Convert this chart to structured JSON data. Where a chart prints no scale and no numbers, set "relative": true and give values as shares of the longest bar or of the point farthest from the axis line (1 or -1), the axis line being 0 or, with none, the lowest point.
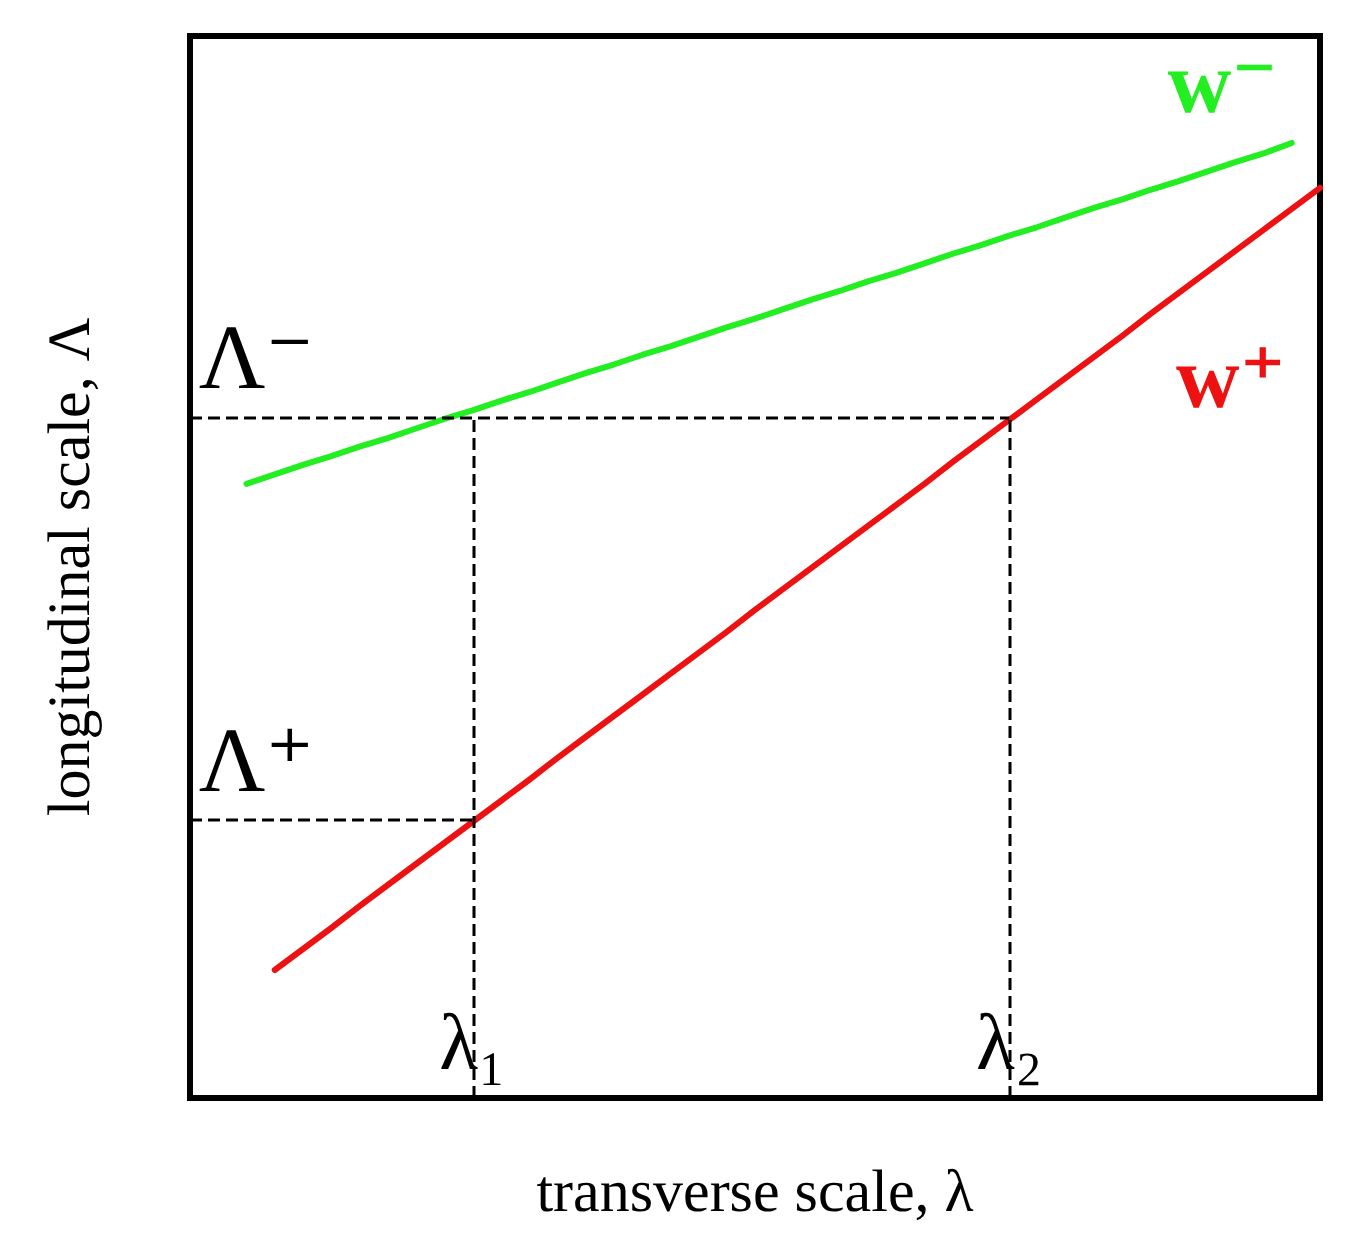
{
  "chart_data": {
    "type": "line",
    "relative": true,
    "xlabel": "transverse scale, λ",
    "ylabel": "longitudinal scale, Λ",
    "categories": [
      null,
      null,
      null,
      null,
      null,
      null,
      null,
      null,
      null,
      null,
      "λ₁",
      null,
      null,
      null,
      null,
      null,
      null,
      null,
      null,
      null,
      null,
      null,
      null,
      null,
      null,
      null,
      null,
      null,
      null,
      "λ₂",
      null,
      null,
      null,
      null,
      null,
      null,
      null,
      null,
      null,
      null,
      null
    ],
    "legend": false,
    "grid": false,
    "marker": "none",
    "line_style": "solid",
    "tick_labels": "x",
    "series": [
      {
        "name": "w⁻",
        "color": "#22ee22",
        "values": [
          null,
          null,
          0.643,
          0.653,
          0.663,
          0.672,
          0.682,
          0.691,
          0.701,
          0.711,
          0.72,
          0.73,
          0.739,
          0.749,
          0.759,
          0.768,
          0.778,
          0.787,
          0.797,
          0.807,
          0.816,
          0.826,
          0.836,
          0.845,
          0.855,
          0.864,
          0.874,
          0.884,
          0.893,
          0.903,
          0.912,
          0.922,
          0.932,
          0.941,
          0.951,
          0.96,
          0.97,
          0.98,
          0.989,
          1.0,
          null
        ]
      },
      {
        "name": "w⁺",
        "color": "#ee1111",
        "values": [
          null,
          null,
          null,
          0.134,
          0.156,
          0.178,
          0.201,
          0.223,
          0.245,
          0.267,
          0.289,
          0.311,
          0.333,
          0.356,
          0.378,
          0.4,
          0.422,
          0.444,
          0.466,
          0.488,
          0.511,
          0.533,
          0.555,
          0.577,
          0.599,
          0.621,
          0.643,
          0.666,
          0.688,
          0.71,
          0.732,
          0.754,
          0.776,
          0.798,
          0.821,
          0.843,
          0.865,
          0.887,
          0.909,
          0.931,
          0.953
        ]
      }
    ],
    "ref_lines": [
      {
        "axis": "y",
        "value": 0.713,
        "label": "Λ⁻",
        "color": "#000000",
        "line_style": "dashed"
      },
      {
        "axis": "y",
        "value": 0.291,
        "label": "Λ⁺",
        "color": "#000000",
        "line_style": "dashed"
      },
      {
        "axis": "x",
        "value": "λ₁",
        "color": "#000000",
        "line_style": "dashed"
      },
      {
        "axis": "x",
        "value": "λ₂",
        "color": "#000000",
        "line_style": "dashed"
      }
    ]
  }
}
